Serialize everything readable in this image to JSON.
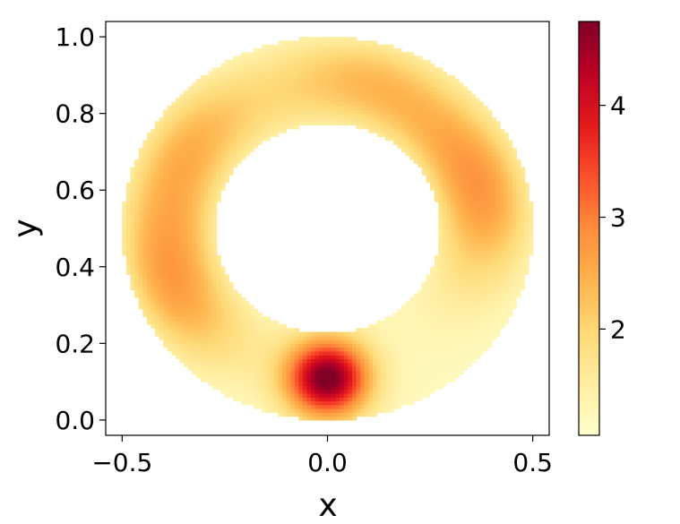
{
  "chart_data": {
    "type": "heatmap",
    "title": "",
    "xlabel": "x",
    "ylabel": "y",
    "xlim": [
      -0.54,
      0.54
    ],
    "ylim": [
      -0.04,
      1.04
    ],
    "x_ticks": [
      -0.5,
      0.0,
      0.5
    ],
    "x_tick_labels": [
      "−0.5",
      "0.0",
      "0.5"
    ],
    "y_ticks": [
      0.0,
      0.2,
      0.4,
      0.6,
      0.8,
      1.0
    ],
    "y_tick_labels": [
      "0.0",
      "0.2",
      "0.4",
      "0.6",
      "0.8",
      "1.0"
    ],
    "grid": false,
    "domain": {
      "shape": "annulus",
      "center": [
        0.0,
        0.5
      ],
      "inner_radius": 0.275,
      "outer_radius": 0.5
    },
    "field_features": [
      {
        "description": "peak",
        "x": 0.0,
        "y": 0.11,
        "value": 4.7
      },
      {
        "description": "band",
        "x": 0.35,
        "y": 0.6,
        "value": 2.6
      },
      {
        "description": "band",
        "x": -0.4,
        "y": 0.35,
        "value": 2.5
      },
      {
        "description": "band",
        "x": -0.35,
        "y": 0.72,
        "value": 2.2
      },
      {
        "description": "band",
        "x": 0.1,
        "y": 0.9,
        "value": 2.1
      }
    ],
    "colorbar": {
      "colormap": "YlOrRd",
      "min": 1.05,
      "max": 4.75,
      "ticks": [
        2,
        3,
        4
      ],
      "tick_labels": [
        "2",
        "3",
        "4"
      ],
      "colors": [
        "#ffffcc",
        "#ffeda0",
        "#fed976",
        "#feb24c",
        "#fd8d3c",
        "#fc4e2a",
        "#e31a1c",
        "#bd0026",
        "#800026"
      ]
    }
  }
}
